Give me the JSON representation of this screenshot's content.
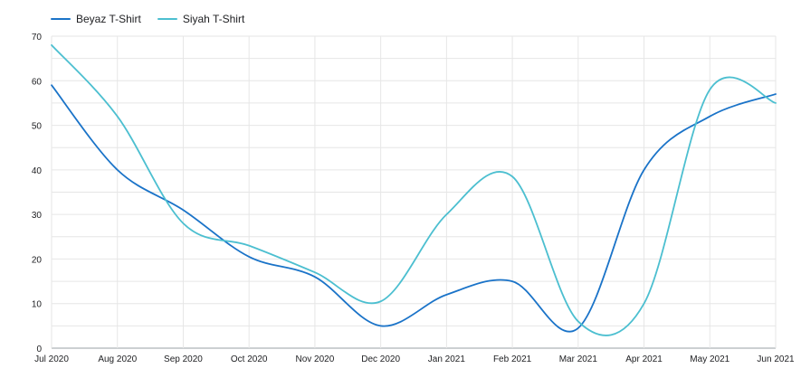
{
  "chart_data": {
    "type": "line",
    "title": "",
    "xlabel": "",
    "ylabel": "",
    "categories": [
      "Jul 2020",
      "Aug 2020",
      "Sep 2020",
      "Oct 2020",
      "Nov 2020",
      "Dec 2020",
      "Jan 2021",
      "Feb 2021",
      "Mar 2021",
      "Apr 2021",
      "May 2021",
      "Jun 2021"
    ],
    "y_ticks": [
      "0",
      "10",
      "20",
      "30",
      "40",
      "50",
      "60",
      "70"
    ],
    "ylim": [
      0,
      70
    ],
    "grid": true,
    "legend_position": "top-left",
    "series": [
      {
        "name": "Beyaz T-Shirt",
        "color": "#1a73c8",
        "values": [
          59,
          40,
          31,
          20.5,
          16,
          5,
          12,
          15,
          4.5,
          40,
          52,
          57
        ]
      },
      {
        "name": "Siyah T-Shirt",
        "color": "#4cbfd0",
        "values": [
          68,
          52,
          28,
          23,
          17,
          10.5,
          30,
          38.5,
          6,
          10,
          58,
          55
        ]
      }
    ]
  }
}
